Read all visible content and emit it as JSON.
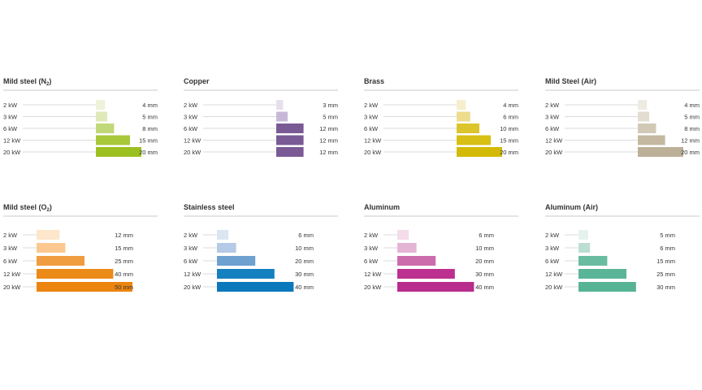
{
  "chart_data": [
    {
      "type": "bar",
      "title": "Mild steel (N",
      "title_sub": "2",
      "title_suffix": ")",
      "categories": [
        "2 kW",
        "3 kW",
        "6 kW",
        "12 kW",
        "20 kW"
      ],
      "values": [
        4,
        5,
        8,
        15,
        20
      ],
      "value_labels": [
        "4 mm",
        "5 mm",
        "8 mm",
        "15 mm",
        "20 mm"
      ],
      "unit": "mm",
      "colors": [
        "#eef2d9",
        "#dfe9b8",
        "#c0d878",
        "#a8c83a",
        "#9cc020"
      ]
    },
    {
      "type": "bar",
      "title": "Copper",
      "title_sub": "",
      "title_suffix": "",
      "categories": [
        "2 kW",
        "3 kW",
        "6 kW",
        "12 kW",
        "20 kW"
      ],
      "values": [
        3,
        5,
        12,
        12,
        12
      ],
      "value_labels": [
        "3 mm",
        "5 mm",
        "12 mm",
        "12 mm",
        "12 mm"
      ],
      "unit": "mm",
      "colors": [
        "#e6e0ee",
        "#c8b8d8",
        "#7a5a94",
        "#7a5a94",
        "#7a5a94"
      ]
    },
    {
      "type": "bar",
      "title": "Brass",
      "title_sub": "",
      "title_suffix": "",
      "categories": [
        "2 kW",
        "3 kW",
        "6 kW",
        "12 kW",
        "20 kW"
      ],
      "values": [
        4,
        6,
        10,
        15,
        20
      ],
      "value_labels": [
        "4 mm",
        "6 mm",
        "10 mm",
        "15 mm",
        "20 mm"
      ],
      "unit": "mm",
      "colors": [
        "#f6eecc",
        "#ecdc8c",
        "#dcc42c",
        "#d8bf14",
        "#d4ba08"
      ]
    },
    {
      "type": "bar",
      "title": "Mild Steel (Air)",
      "title_sub": "",
      "title_suffix": "",
      "categories": [
        "2 kW",
        "3 kW",
        "6 kW",
        "12 kW",
        "20 kW"
      ],
      "values": [
        4,
        5,
        8,
        12,
        20
      ],
      "value_labels": [
        "4 mm",
        "5 mm",
        "8 mm",
        "12 mm",
        "20 mm"
      ],
      "unit": "mm",
      "colors": [
        "#eeebe3",
        "#e2ddd0",
        "#d2c8b6",
        "#c4b8a0",
        "#bcb098"
      ]
    },
    {
      "type": "bar",
      "title": "Mild steel (O",
      "title_sub": "2",
      "title_suffix": ")",
      "categories": [
        "2 kW",
        "3 kW",
        "6 kW",
        "12 kW",
        "20 kW"
      ],
      "values": [
        12,
        15,
        25,
        40,
        50
      ],
      "value_labels": [
        "12 mm",
        "15 mm",
        "25 mm",
        "40 mm",
        "50 mm"
      ],
      "unit": "mm",
      "colors": [
        "#fde6cc",
        "#fcc890",
        "#f09c40",
        "#ec8a18",
        "#ec8410"
      ]
    },
    {
      "type": "bar",
      "title": "Stainless steel",
      "title_sub": "",
      "title_suffix": "",
      "categories": [
        "2 kW",
        "3 kW",
        "6 kW",
        "12 kW",
        "20 kW"
      ],
      "values": [
        6,
        10,
        20,
        30,
        40
      ],
      "value_labels": [
        "6 mm",
        "10 mm",
        "20 mm",
        "30 mm",
        "40 mm"
      ],
      "unit": "mm",
      "colors": [
        "#dce6f2",
        "#b4cae6",
        "#6ea0d0",
        "#1480c0",
        "#0c78bc"
      ]
    },
    {
      "type": "bar",
      "title": "Aluminum",
      "title_sub": "",
      "title_suffix": "",
      "categories": [
        "2 kW",
        "3 kW",
        "6 kW",
        "12 kW",
        "20 kW"
      ],
      "values": [
        6,
        10,
        20,
        30,
        40
      ],
      "value_labels": [
        "6 mm",
        "10 mm",
        "20 mm",
        "30 mm",
        "40 mm"
      ],
      "unit": "mm",
      "colors": [
        "#f4dcea",
        "#e4b4d4",
        "#cc6cac",
        "#bc3090",
        "#b82c8c"
      ]
    },
    {
      "type": "bar",
      "title": "Aluminum (Air)",
      "title_sub": "",
      "title_suffix": "",
      "categories": [
        "2 kW",
        "3 kW",
        "6 kW",
        "12 kW",
        "20 kW"
      ],
      "values": [
        5,
        6,
        15,
        25,
        30
      ],
      "value_labels": [
        "5 mm",
        "6 mm",
        "15 mm",
        "25 mm",
        "30 mm"
      ],
      "unit": "mm",
      "colors": [
        "#e6f2ee",
        "#bcded2",
        "#6abca0",
        "#5ab498",
        "#56b494"
      ]
    }
  ]
}
